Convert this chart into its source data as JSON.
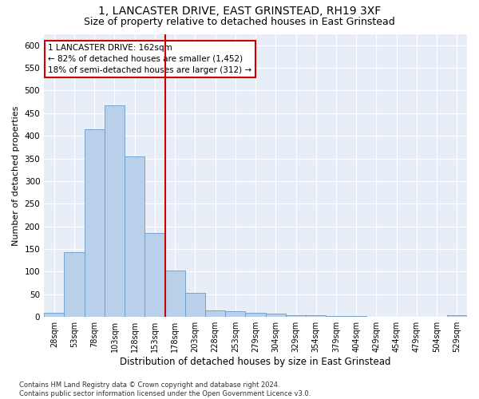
{
  "title": "1, LANCASTER DRIVE, EAST GRINSTEAD, RH19 3XF",
  "subtitle": "Size of property relative to detached houses in East Grinstead",
  "xlabel": "Distribution of detached houses by size in East Grinstead",
  "ylabel": "Number of detached properties",
  "categories": [
    "28sqm",
    "53sqm",
    "78sqm",
    "103sqm",
    "128sqm",
    "153sqm",
    "178sqm",
    "203sqm",
    "228sqm",
    "253sqm",
    "279sqm",
    "304sqm",
    "329sqm",
    "354sqm",
    "379sqm",
    "404sqm",
    "429sqm",
    "454sqm",
    "479sqm",
    "504sqm",
    "529sqm"
  ],
  "values": [
    10,
    143,
    415,
    468,
    355,
    185,
    102,
    54,
    15,
    13,
    10,
    8,
    4,
    4,
    3,
    2,
    0,
    0,
    0,
    0,
    4
  ],
  "bar_color": "#b8d0ea",
  "bar_edge_color": "#6699cc",
  "vline_color": "#cc0000",
  "vline_x": 5.5,
  "annotation_line1": "1 LANCASTER DRIVE: 162sqm",
  "annotation_line2": "← 82% of detached houses are smaller (1,452)",
  "annotation_line3": "18% of semi-detached houses are larger (312) →",
  "annotation_box_edgecolor": "#cc0000",
  "ylim": [
    0,
    625
  ],
  "yticks": [
    0,
    50,
    100,
    150,
    200,
    250,
    300,
    350,
    400,
    450,
    500,
    550,
    600
  ],
  "grid_color": "#ffffff",
  "plot_bg_color": "#e8eef8",
  "title_fontsize": 10,
  "subtitle_fontsize": 9,
  "xlabel_fontsize": 8.5,
  "ylabel_fontsize": 8,
  "tick_fontsize": 7,
  "ytick_fontsize": 7.5,
  "annotation_fontsize": 7.5,
  "footnote": "Contains HM Land Registry data © Crown copyright and database right 2024.\nContains public sector information licensed under the Open Government Licence v3.0.",
  "footnote_fontsize": 6
}
